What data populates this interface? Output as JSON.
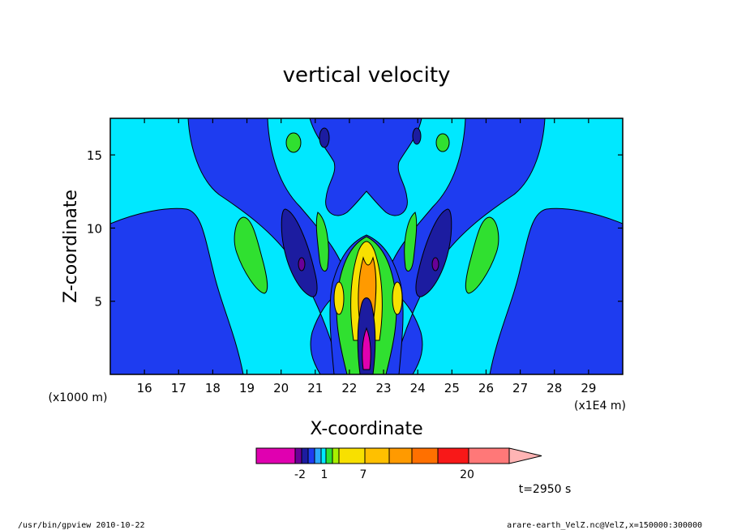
{
  "chart_data": {
    "type": "contour",
    "title": "vertical velocity",
    "xlabel": "X-coordinate",
    "ylabel": "Z-coordinate",
    "x_unit": "(x1E4 m)",
    "y_unit": "(x1000 m)",
    "xlim": [
      15,
      30
    ],
    "ylim": [
      0,
      17.5
    ],
    "x_ticks": [
      16,
      17,
      18,
      19,
      20,
      21,
      22,
      23,
      24,
      25,
      26,
      27,
      28,
      29
    ],
    "y_ticks": [
      5,
      10,
      15
    ],
    "time_label": "t=2950 s",
    "colorbar": {
      "segments": [
        {
          "color": "#e000b0"
        },
        {
          "color": "#6a0098"
        },
        {
          "color": "#1c1ca0"
        },
        {
          "color": "#1e3cf0"
        },
        {
          "color": "#2aa8ff"
        },
        {
          "color": "#00e8ff"
        },
        {
          "color": "#30e030"
        },
        {
          "color": "#a8f000"
        },
        {
          "color": "#f8e000"
        },
        {
          "color": "#ffc000"
        },
        {
          "color": "#ff9a00"
        },
        {
          "color": "#ff7000"
        },
        {
          "color": "#f81818"
        },
        {
          "color": "#ff7878"
        },
        {
          "color": "#ffb4b4"
        }
      ],
      "labels": [
        "-2",
        "1",
        "7",
        "20"
      ]
    },
    "colors": {
      "deep_blue": "#1e3cf0",
      "cyan": "#00e8ff",
      "navy": "#1c1ca0",
      "green": "#30e030",
      "yellow": "#f8e000",
      "magenta": "#e000b0"
    }
  },
  "footer": {
    "left": "/usr/bin/gpview  2010-10-22",
    "right": "arare-earth_VelZ.nc@VelZ,x=150000:300000"
  }
}
